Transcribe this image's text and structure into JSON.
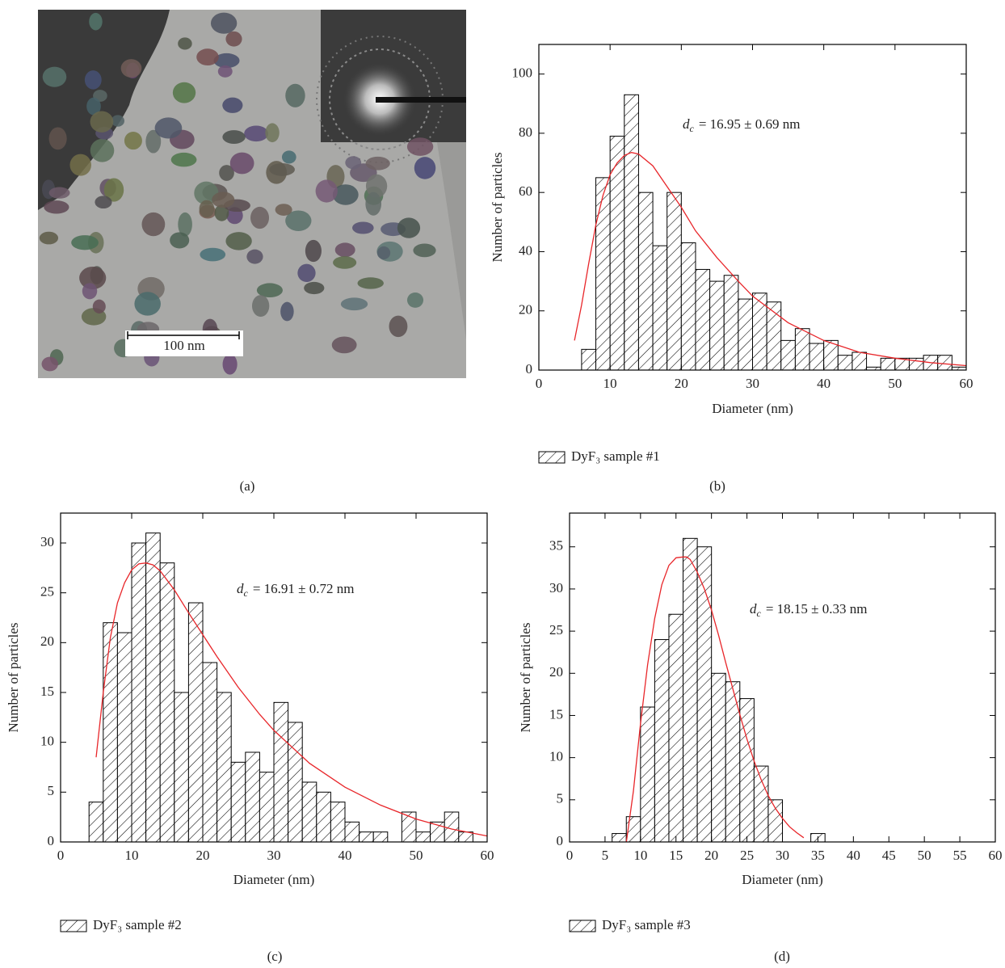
{
  "panel_a": {
    "scale_bar": "100 nm",
    "caption": "(a)"
  },
  "chart_data": [
    {
      "type": "histogram",
      "caption": "(b)",
      "xlabel": "Diameter (nm)",
      "ylabel": "Number of particles",
      "annotation": {
        "symbol": "d",
        "subscript": "c",
        "text": "= 16.95 ± 0.69 nm"
      },
      "series": [
        {
          "name": "DyF₃ sample #1",
          "color": "#000000",
          "bins": [
            6,
            8,
            10,
            12,
            14,
            16,
            18,
            20,
            22,
            24,
            26,
            28,
            30,
            32,
            34,
            36,
            38,
            40,
            42,
            44,
            46,
            48,
            50,
            52,
            54,
            56,
            58,
            60
          ],
          "values": [
            7,
            65,
            79,
            93,
            60,
            42,
            60,
            43,
            34,
            30,
            32,
            24,
            26,
            23,
            10,
            14,
            9,
            10,
            5,
            6,
            1,
            4,
            4,
            4,
            5,
            5,
            1
          ]
        }
      ],
      "fit": {
        "color": "#e8262a",
        "x": [
          5,
          6,
          7,
          8,
          9,
          10,
          11,
          12,
          13,
          14,
          16,
          18,
          20,
          22,
          25,
          28,
          30,
          35,
          40,
          45,
          50,
          55,
          60
        ],
        "y": [
          10,
          22,
          36,
          49,
          59,
          66,
          70,
          72.5,
          73.5,
          73,
          69,
          62,
          55,
          47,
          38,
          30,
          25,
          16,
          10,
          6,
          4,
          2.5,
          1.5
        ]
      },
      "xlim": [
        0,
        60
      ],
      "xticks": [
        0,
        10,
        20,
        30,
        40,
        50,
        60
      ],
      "ylim": [
        0,
        110
      ],
      "yticks": [
        0,
        20,
        40,
        60,
        80,
        100
      ]
    },
    {
      "type": "histogram",
      "caption": "(c)",
      "xlabel": "Diameter (nm)",
      "ylabel": "Number of particles",
      "annotation": {
        "symbol": "d",
        "subscript": "c",
        "text": "= 16.91 ± 0.72 nm"
      },
      "series": [
        {
          "name": "DyF₃ sample #2",
          "color": "#000000",
          "bins": [
            4,
            6,
            8,
            10,
            12,
            14,
            16,
            18,
            20,
            22,
            24,
            26,
            28,
            30,
            32,
            34,
            36,
            38,
            40,
            42,
            44,
            46,
            48,
            50,
            52,
            54,
            56,
            58
          ],
          "values": [
            4,
            22,
            21,
            30,
            31,
            28,
            15,
            24,
            18,
            15,
            8,
            9,
            7,
            14,
            12,
            6,
            5,
            4,
            2,
            1,
            1,
            0,
            3,
            1,
            2,
            3,
            1
          ]
        }
      ],
      "fit": {
        "color": "#e8262a",
        "x": [
          5,
          6,
          7,
          8,
          9,
          10,
          11,
          12,
          13,
          14,
          16,
          18,
          20,
          22,
          25,
          28,
          30,
          35,
          40,
          45,
          50,
          55,
          60
        ],
        "y": [
          8.5,
          15,
          20.5,
          24,
          26,
          27.3,
          27.9,
          28,
          27.8,
          27.2,
          25.3,
          23,
          20.8,
          18.6,
          15.5,
          12.8,
          11.2,
          7.9,
          5.5,
          3.7,
          2.3,
          1.3,
          0.6
        ]
      },
      "xlim": [
        0,
        60
      ],
      "xticks": [
        0,
        10,
        20,
        30,
        40,
        50,
        60
      ],
      "ylim": [
        0,
        33
      ],
      "yticks": [
        0,
        5,
        10,
        15,
        20,
        25,
        30
      ]
    },
    {
      "type": "histogram",
      "caption": "(d)",
      "xlabel": "Diameter (nm)",
      "ylabel": "Number of particles",
      "annotation": {
        "symbol": "d",
        "subscript": "c",
        "text": "= 18.15 ± 0.33 nm"
      },
      "series": [
        {
          "name": "DyF₃ sample #3",
          "color": "#000000",
          "bins": [
            6,
            8,
            10,
            12,
            14,
            16,
            18,
            20,
            22,
            24,
            26,
            28,
            30,
            32,
            34,
            36
          ],
          "values": [
            1,
            3,
            16,
            24,
            27,
            36,
            35,
            20,
            19,
            17,
            9,
            5,
            0,
            0,
            1
          ]
        }
      ],
      "fit": {
        "color": "#e8262a",
        "x": [
          8,
          9,
          10,
          11,
          12,
          13,
          14,
          15,
          16,
          16.5,
          17,
          18,
          19,
          20,
          21,
          22,
          23,
          24,
          25,
          26,
          27,
          28,
          29,
          30,
          31,
          32,
          33
        ],
        "y": [
          0,
          6,
          14,
          21,
          26.5,
          30.5,
          32.8,
          33.7,
          33.8,
          33.8,
          33.5,
          32,
          30,
          27.5,
          24.5,
          21.3,
          18.2,
          15.1,
          12.2,
          9.6,
          7.4,
          5.5,
          4,
          2.8,
          1.8,
          1.1,
          0.5
        ]
      },
      "xlim": [
        0,
        60
      ],
      "xticks": [
        0,
        5,
        10,
        15,
        20,
        25,
        30,
        35,
        40,
        45,
        50,
        55,
        60
      ],
      "ylim": [
        0,
        39
      ],
      "yticks": [
        0,
        5,
        10,
        15,
        20,
        25,
        30,
        35
      ]
    }
  ]
}
